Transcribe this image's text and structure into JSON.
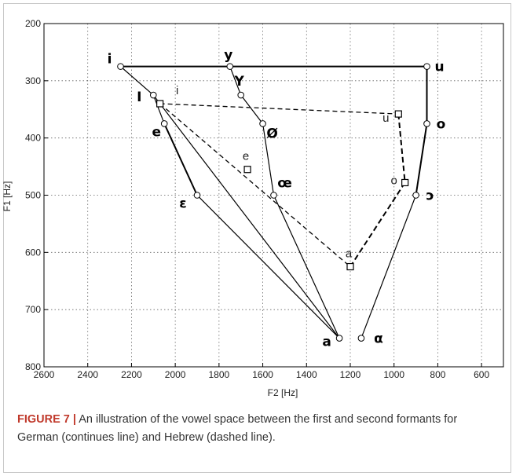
{
  "chart_data": {
    "type": "line",
    "xlabel": "F2 [Hz]",
    "ylabel": "F1 [Hz]",
    "xlim": [
      2600,
      500
    ],
    "ylim": [
      800,
      200
    ],
    "x_reversed": true,
    "y_reversed": true,
    "grid": true,
    "x_ticks": [
      2600,
      2400,
      2200,
      2000,
      1800,
      1600,
      1400,
      1200,
      1000,
      800,
      600
    ],
    "y_ticks": [
      200,
      300,
      400,
      500,
      600,
      700,
      800
    ],
    "german_vowels": [
      {
        "label": "i",
        "x": 2250,
        "y": 275
      },
      {
        "label": "y",
        "x": 1750,
        "y": 275
      },
      {
        "label": "u",
        "x": 850,
        "y": 275
      },
      {
        "label": "I",
        "x": 2100,
        "y": 325
      },
      {
        "label": "Y",
        "x": 1700,
        "y": 325
      },
      {
        "label": "e",
        "x": 2050,
        "y": 375
      },
      {
        "label": "Ø",
        "x": 1600,
        "y": 375
      },
      {
        "label": "o",
        "x": 850,
        "y": 375
      },
      {
        "label": "ɛ",
        "x": 1900,
        "y": 500
      },
      {
        "label": "œ",
        "x": 1550,
        "y": 500
      },
      {
        "label": "ɔ",
        "x": 900,
        "y": 500
      },
      {
        "label": "a",
        "x": 1250,
        "y": 750
      },
      {
        "label": "α",
        "x": 1150,
        "y": 750
      }
    ],
    "german_lines": [
      [
        "i",
        "u"
      ],
      [
        "i",
        "I"
      ],
      [
        "I",
        "e"
      ],
      [
        "e",
        "ɛ"
      ],
      [
        "ɛ",
        "a"
      ],
      [
        "y",
        "Y"
      ],
      [
        "Y",
        "Ø"
      ],
      [
        "Ø",
        "œ"
      ],
      [
        "œ",
        "a"
      ],
      [
        "I",
        "a"
      ],
      [
        "u",
        "o"
      ],
      [
        "o",
        "ɔ"
      ],
      [
        "ɔ",
        "α"
      ]
    ],
    "hebrew_vowels": [
      {
        "label": "i",
        "x": 2070,
        "y": 340
      },
      {
        "label": "u",
        "x": 980,
        "y": 358
      },
      {
        "label": "e",
        "x": 1670,
        "y": 455
      },
      {
        "label": "o",
        "x": 950,
        "y": 478
      },
      {
        "label": "a",
        "x": 1200,
        "y": 625
      }
    ],
    "hebrew_lines": [
      [
        "i",
        "u"
      ],
      [
        "i",
        "a"
      ],
      [
        "u",
        "o"
      ],
      [
        "o",
        "a"
      ]
    ]
  },
  "caption": {
    "figure_label": "FIGURE 7 |",
    "text": "An illustration of the vowel space between the first and second formants for German (continues line) and Hebrew (dashed line)."
  }
}
